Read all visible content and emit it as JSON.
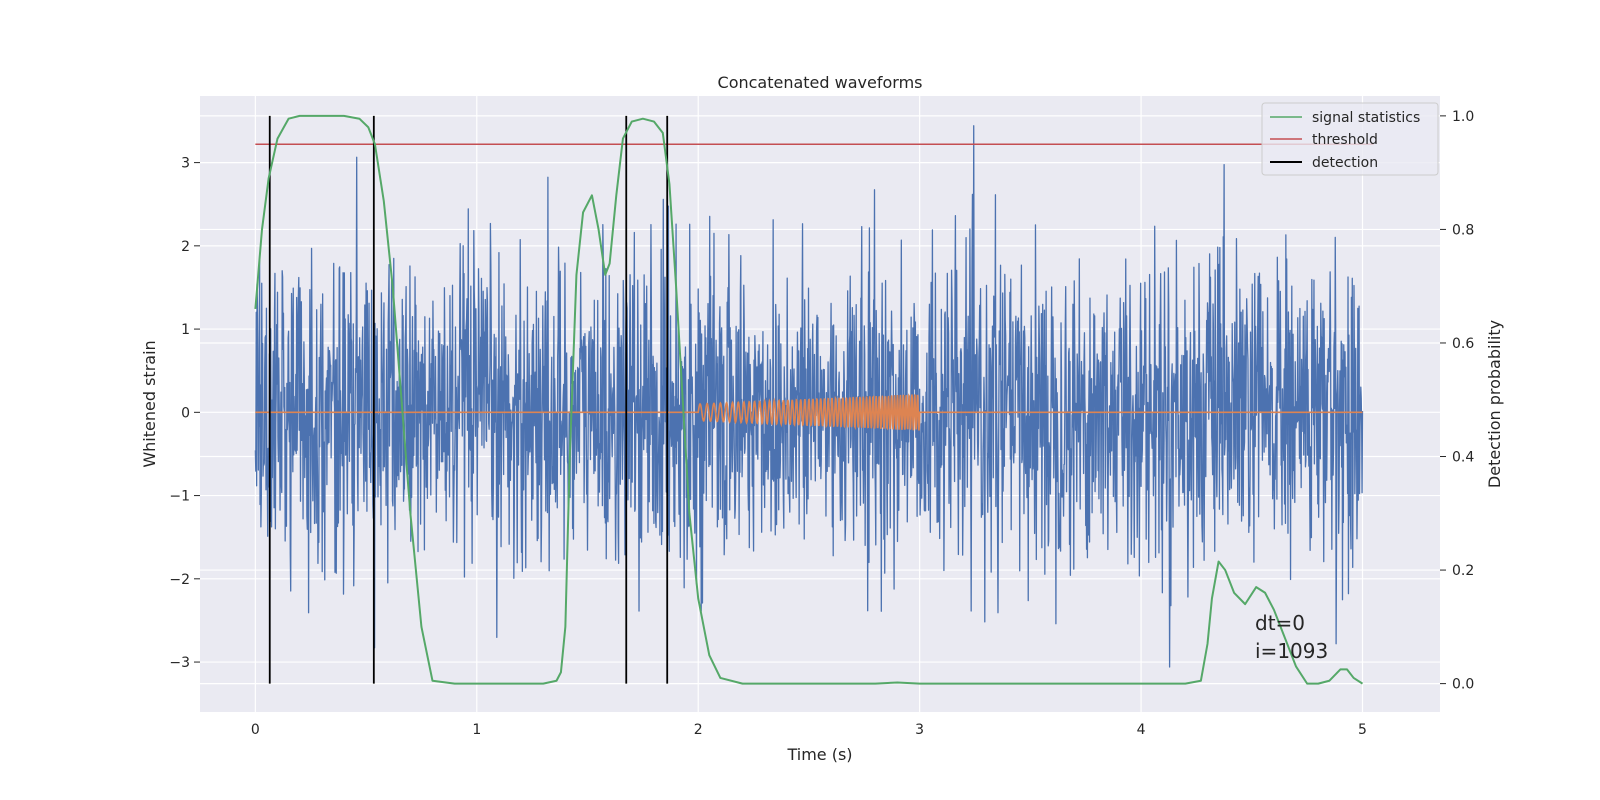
{
  "chart_data": {
    "type": "line",
    "title": "Concatenated waveforms",
    "xlabel": "Time (s)",
    "ylabel": "Whitened strain",
    "y2label": "Detection probability",
    "xlim": [
      -0.25,
      5.35
    ],
    "ylim": [
      -3.6,
      3.8
    ],
    "y2lim": [
      -0.05,
      1.035
    ],
    "x_ticks": [
      0,
      1,
      2,
      3,
      4,
      5
    ],
    "x_tick_labels": [
      "0",
      "1",
      "2",
      "3",
      "4",
      "5"
    ],
    "y_ticks": [
      -3,
      -2,
      -1,
      0,
      1,
      2,
      3
    ],
    "y_tick_labels": [
      "−3",
      "−2",
      "−1",
      "0",
      "1",
      "2",
      "3"
    ],
    "y2_ticks": [
      0.0,
      0.2,
      0.4,
      0.6,
      0.8,
      1.0
    ],
    "y2_tick_labels": [
      "0.0",
      "0.2",
      "0.4",
      "0.6",
      "0.8",
      "1.0"
    ],
    "grid": true,
    "legend_position": "top-right",
    "colors": {
      "strain": "#4c72b0",
      "injected": "#dd8452",
      "signal_statistics": "#55a868",
      "threshold": "#c44e52",
      "detection": "#000000",
      "background": "#eaeaf2",
      "grid": "#ffffff"
    },
    "series": [
      {
        "name": "signal statistics",
        "axis": "right",
        "x": [
          0.0,
          0.03,
          0.06,
          0.1,
          0.15,
          0.2,
          0.3,
          0.4,
          0.47,
          0.51,
          0.54,
          0.58,
          0.62,
          0.66,
          0.7,
          0.75,
          0.8,
          0.9,
          1.0,
          1.1,
          1.2,
          1.3,
          1.36,
          1.38,
          1.4,
          1.42,
          1.45,
          1.48,
          1.52,
          1.55,
          1.58,
          1.6,
          1.63,
          1.66,
          1.7,
          1.75,
          1.8,
          1.84,
          1.87,
          1.9,
          1.93,
          1.96,
          2.0,
          2.05,
          2.1,
          2.2,
          2.4,
          2.6,
          2.8,
          2.9,
          3.0,
          3.2,
          3.5,
          3.8,
          4.0,
          4.2,
          4.27,
          4.3,
          4.32,
          4.35,
          4.38,
          4.42,
          4.47,
          4.52,
          4.56,
          4.6,
          4.65,
          4.7,
          4.75,
          4.8,
          4.85,
          4.9,
          4.93,
          4.96,
          5.0
        ],
        "y": [
          0.66,
          0.8,
          0.89,
          0.96,
          0.995,
          1.0,
          1.0,
          1.0,
          0.995,
          0.98,
          0.95,
          0.85,
          0.7,
          0.5,
          0.3,
          0.1,
          0.005,
          0.0,
          0.0,
          0.0,
          0.0,
          0.0,
          0.005,
          0.02,
          0.1,
          0.4,
          0.72,
          0.83,
          0.86,
          0.8,
          0.72,
          0.74,
          0.86,
          0.96,
          0.99,
          0.995,
          0.99,
          0.97,
          0.88,
          0.7,
          0.5,
          0.3,
          0.15,
          0.05,
          0.01,
          0.0,
          0.0,
          0.0,
          0.0,
          0.002,
          0.0,
          0.0,
          0.0,
          0.0,
          0.0,
          0.0,
          0.005,
          0.07,
          0.15,
          0.215,
          0.2,
          0.16,
          0.14,
          0.17,
          0.16,
          0.13,
          0.08,
          0.03,
          0.0,
          0.0,
          0.005,
          0.025,
          0.025,
          0.01,
          0.0
        ]
      },
      {
        "name": "threshold",
        "axis": "right",
        "x": [
          0.0,
          5.05
        ],
        "y": [
          0.95,
          0.95
        ]
      },
      {
        "name": "detection",
        "axis": "right",
        "x": [
          0.065,
          0.535,
          1.675,
          1.86
        ],
        "y_range": [
          0.0,
          1.0
        ]
      },
      {
        "name": "",
        "axis": "left",
        "description": "whitened noisy strain, roughly Gaussian noise of amplitude about ±1 with spikes to about ±3.4",
        "x_range": [
          0.0,
          5.0
        ],
        "amplitude": 0.9
      },
      {
        "name": "",
        "axis": "left",
        "description": "injected chirp waveform, zero outside 2–3 s, growing oscillation inside",
        "x_range": [
          0.0,
          5.0
        ],
        "chirp_range": [
          2.0,
          3.0
        ],
        "chirp_amplitude": [
          0.1,
          0.22
        ]
      }
    ],
    "annotations": [
      "dt=0",
      "i=1093"
    ],
    "legend": [
      "signal statistics",
      "threshold",
      "detection"
    ]
  }
}
